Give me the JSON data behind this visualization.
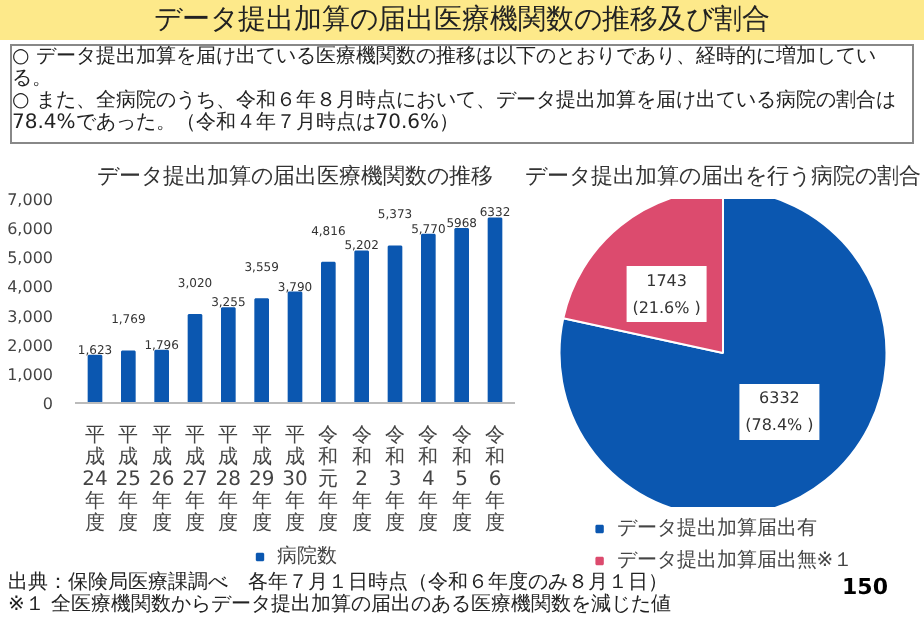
{
  "chart_data": [
    {
      "type": "other",
      "title": "データ提出加算の届出医療機関数の推移及び割合",
      "annotations": [
        "○ データ提出加算を届け出ている医療機関数の推移は以下のとおりであり、経時的に増加している。",
        "○ また、全病院のうち、令和６年８月時点において、データ提出加算を届け出ている病院の割合は78.4%であった。（令和４年７月時点は70.6%）"
      ]
    },
    {
      "type": "bar",
      "title": "データ提出加算の届出医療機関数の推移",
      "categories": [
        "平成24年度",
        "平成25年度",
        "平成26年度",
        "平成27年度",
        "平成28年度",
        "平成29年度",
        "平成30年度",
        "令和元年度",
        "令和2年度",
        "令和3年度",
        "令和4年度",
        "令和5年度",
        "令和6年度"
      ],
      "series": [
        {
          "name": "病院数",
          "color": "#0b57b0",
          "values": [
            1623,
            1769,
            1796,
            3020,
            3255,
            3559,
            3790,
            4816,
            5202,
            5373,
            5770,
            5968,
            6332
          ],
          "value_labels": [
            "1,623",
            "1,769",
            "1,796",
            "3,020",
            "3,255",
            "3,559",
            "3,790",
            "4,816",
            "5,202",
            "5,373",
            "5,770",
            "5968",
            "6332"
          ]
        }
      ],
      "ylim": [
        0,
        7000
      ],
      "yticks": [
        0,
        {
          "value": 1000,
          "label": "1,000"
        },
        {
          "value": 2000,
          "label": "2,000"
        },
        {
          "value": 3000,
          "label": "3,000"
        },
        {
          "value": 4000,
          "label": "4,000"
        },
        {
          "value": 5000,
          "label": "5,000"
        },
        {
          "value": 6000,
          "label": "6,000"
        },
        {
          "value": 7000,
          "label": "7,000"
        }
      ],
      "legend": "bottom",
      "annotations": [
        "出典：保険局医療課調べ　各年７月１日時点（令和６年度のみ８月１日）",
        "※１ 全医療機関数からデータ提出加算の届出のある医療機関数を減じた値"
      ]
    },
    {
      "type": "pie",
      "title": "データ提出加算の届出を行う病院の割合",
      "categories": [
        "データ提出加算届出有",
        "データ提出加算届出無※１"
      ],
      "values": [
        6332,
        1743
      ],
      "colors": [
        "#0b57b0",
        "#dc4b6e"
      ],
      "value_labels": [
        "6332\n(78.4% )",
        "1743\n(21.6% )"
      ],
      "legend": "bottom",
      "annotations": [
        "150"
      ]
    }
  ]
}
